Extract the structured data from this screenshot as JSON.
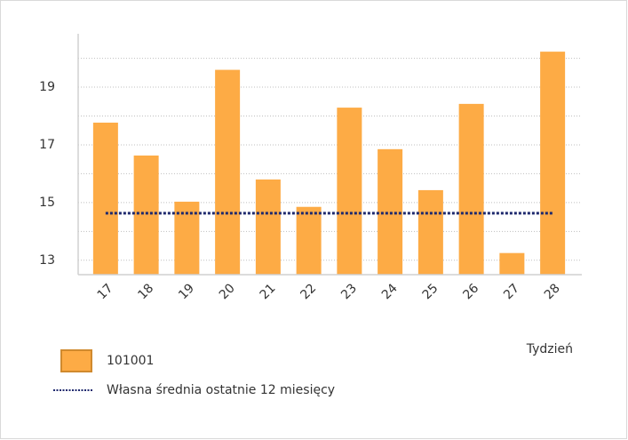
{
  "chart_data": {
    "type": "bar",
    "x_label": "Tydzień",
    "categories": [
      "17",
      "18",
      "19",
      "20",
      "21",
      "22",
      "23",
      "24",
      "25",
      "26",
      "27",
      "28"
    ],
    "series": [
      {
        "name": "101001",
        "type": "bar",
        "color": "#fdab45",
        "values": [
          17.77,
          16.63,
          15.03,
          19.6,
          15.8,
          14.85,
          18.29,
          16.85,
          15.43,
          18.42,
          13.25,
          20.23
        ]
      },
      {
        "name": "Własna średnia ostatnie 12 miesięcy",
        "type": "line",
        "color": "#1f2a6e",
        "values": [
          14.63,
          14.63,
          14.63,
          14.63,
          14.63,
          14.63,
          14.63,
          14.63,
          14.63,
          14.63,
          14.63,
          14.63
        ]
      }
    ],
    "ylim": [
      12.5,
      20.85
    ],
    "yticks": [
      13,
      15,
      17,
      19
    ],
    "minor_yticks": [
      14,
      16,
      18,
      20
    ],
    "grid": true,
    "legend": "bottom-left"
  }
}
